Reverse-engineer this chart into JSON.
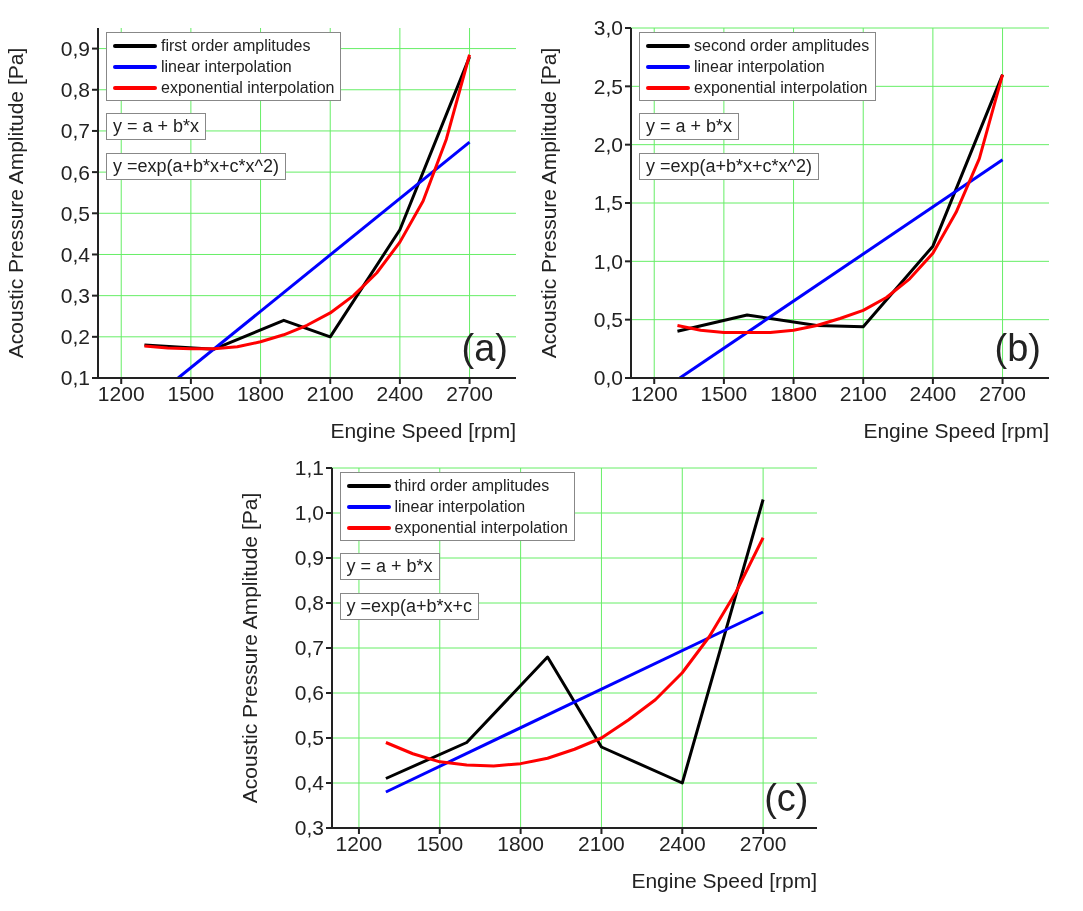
{
  "chart_data": [
    {
      "type": "line",
      "xlabel": "Engine Speed [rpm]",
      "ylabel": "Acoustic Pressure Amplitude [Pa]",
      "xlim": [
        1100,
        2900
      ],
      "xticks": [
        1200,
        1500,
        1800,
        2100,
        2400,
        2700
      ],
      "ylim": [
        0.1,
        0.95
      ],
      "yticks": [
        {
          "value": 0.1,
          "label": "0,1"
        },
        {
          "value": 0.2,
          "label": "0,2"
        },
        {
          "value": 0.3,
          "label": "0,3"
        },
        {
          "value": 0.4,
          "label": "0,4"
        },
        {
          "value": 0.5,
          "label": "0,5"
        },
        {
          "value": 0.6,
          "label": "0,6"
        },
        {
          "value": 0.7,
          "label": "0,7"
        },
        {
          "value": 0.8,
          "label": "0,8"
        },
        {
          "value": 0.9,
          "label": "0,9"
        }
      ],
      "grid": true,
      "legend": "top left",
      "marker": "none",
      "line_style": "solid",
      "annotations": [
        "y = a + b*x",
        "y =exp(a+b*x+c*x^2)",
        "(a)"
      ],
      "series": [
        {
          "name": "first order amplitudes",
          "color": "#000000",
          "x": [
            1300,
            1600,
            1900,
            2100,
            2400,
            2700
          ],
          "values": [
            0.18,
            0.17,
            0.24,
            0.2,
            0.46,
            0.88
          ]
        },
        {
          "name": "linear interpolation",
          "color": "#0000ff",
          "x": [
            1445,
            2700
          ],
          "values": [
            0.1,
            0.673
          ]
        },
        {
          "name": "exponential interpolation",
          "color": "#ff0000",
          "x": [
            1300,
            1400,
            1500,
            1600,
            1700,
            1800,
            1900,
            2000,
            2100,
            2200,
            2300,
            2400,
            2500,
            2600,
            2700
          ],
          "values": [
            0.178,
            0.173,
            0.171,
            0.171,
            0.176,
            0.188,
            0.205,
            0.228,
            0.258,
            0.3,
            0.355,
            0.43,
            0.53,
            0.68,
            0.885
          ]
        }
      ]
    },
    {
      "type": "line",
      "xlabel": "Engine Speed [rpm]",
      "ylabel": "Acoustic Pressure Amplitude [Pa]",
      "xlim": [
        1100,
        2900
      ],
      "xticks": [
        1200,
        1500,
        1800,
        2100,
        2400,
        2700
      ],
      "ylim": [
        0,
        3
      ],
      "yticks": [
        {
          "value": 0,
          "label": "0,0"
        },
        {
          "value": 0.5,
          "label": "0,5"
        },
        {
          "value": 1,
          "label": "1,0"
        },
        {
          "value": 1.5,
          "label": "1,5"
        },
        {
          "value": 2,
          "label": "2,0"
        },
        {
          "value": 2.5,
          "label": "2,5"
        },
        {
          "value": 3,
          "label": "3,0"
        }
      ],
      "grid": true,
      "legend": "top left",
      "marker": "none",
      "line_style": "solid",
      "annotations": [
        "y = a + b*x",
        "y =exp(a+b*x+c*x^2)",
        "(b)"
      ],
      "series": [
        {
          "name": "second order amplitudes",
          "color": "#000000",
          "x": [
            1300,
            1600,
            1900,
            2100,
            2400,
            2700
          ],
          "values": [
            0.4,
            0.54,
            0.45,
            0.44,
            1.13,
            2.6
          ]
        },
        {
          "name": "linear interpolation",
          "color": "#0000ff",
          "x": [
            1310,
            2700
          ],
          "values": [
            0,
            1.87
          ]
        },
        {
          "name": "exponential interpolation",
          "color": "#ff0000",
          "x": [
            1300,
            1400,
            1500,
            1600,
            1700,
            1800,
            1900,
            2000,
            2100,
            2200,
            2300,
            2400,
            2500,
            2600,
            2700
          ],
          "values": [
            0.45,
            0.41,
            0.39,
            0.39,
            0.39,
            0.41,
            0.45,
            0.51,
            0.58,
            0.69,
            0.85,
            1.07,
            1.42,
            1.88,
            2.6
          ]
        }
      ]
    },
    {
      "type": "line",
      "xlabel": "Engine Speed [rpm]",
      "ylabel": "Acoustic Pressure Amplitude [Pa]",
      "xlim": [
        1100,
        2900
      ],
      "xticks": [
        1200,
        1500,
        1800,
        2100,
        2400,
        2700
      ],
      "ylim": [
        0.3,
        1.1
      ],
      "yticks": [
        {
          "value": 0.3,
          "label": "0,3"
        },
        {
          "value": 0.4,
          "label": "0,4"
        },
        {
          "value": 0.5,
          "label": "0,5"
        },
        {
          "value": 0.6,
          "label": "0,6"
        },
        {
          "value": 0.7,
          "label": "0,7"
        },
        {
          "value": 0.8,
          "label": "0,8"
        },
        {
          "value": 0.9,
          "label": "0,9"
        },
        {
          "value": 1,
          "label": "1,0"
        },
        {
          "value": 1.1,
          "label": "1,1"
        }
      ],
      "grid": true,
      "legend": "top left",
      "marker": "none",
      "line_style": "solid",
      "annotations": [
        "y = a + b*x",
        "y =exp(a+b*x+c",
        "(c)"
      ],
      "series": [
        {
          "name": "third order amplitudes",
          "color": "#000000",
          "x": [
            1300,
            1600,
            1900,
            2100,
            2400,
            2700
          ],
          "values": [
            0.41,
            0.49,
            0.68,
            0.48,
            0.4,
            1.03
          ]
        },
        {
          "name": "linear interpolation",
          "color": "#0000ff",
          "x": [
            1300,
            2700
          ],
          "values": [
            0.38,
            0.78
          ]
        },
        {
          "name": "exponential interpolation",
          "color": "#ff0000",
          "x": [
            1300,
            1400,
            1500,
            1600,
            1700,
            1800,
            1900,
            2000,
            2100,
            2200,
            2300,
            2400,
            2500,
            2600,
            2700
          ],
          "values": [
            0.49,
            0.465,
            0.447,
            0.44,
            0.438,
            0.443,
            0.455,
            0.475,
            0.5,
            0.54,
            0.585,
            0.645,
            0.725,
            0.825,
            0.945
          ]
        }
      ]
    }
  ]
}
